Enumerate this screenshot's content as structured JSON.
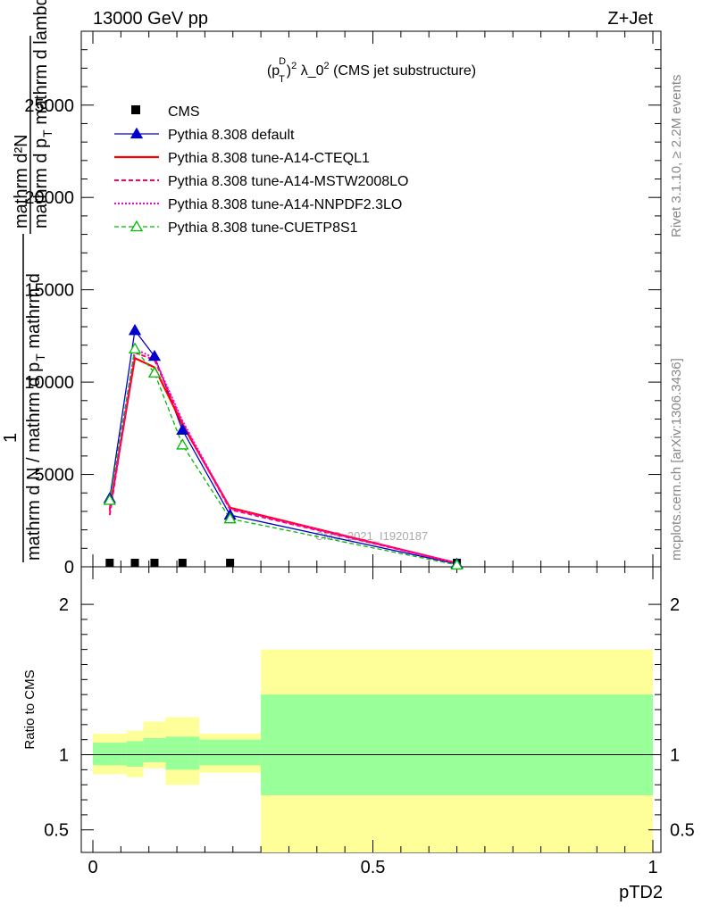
{
  "header": {
    "left": "13000 GeV pp",
    "right": "Z+Jet"
  },
  "side": {
    "rivet": "Rivet 3.1.10, ≥ 2.2M events",
    "mcplots": "mcplots.cern.ch [arXiv:1306.3436]"
  },
  "colors": {
    "cms": "#000000",
    "default": "#0000cc",
    "cteql1": "#ff0000",
    "mstw": "#ff0066",
    "nnpdf": "#ff00cc",
    "cuetp": "#00bb00",
    "band_inner": "#99ff99",
    "band_outer": "#ffff99"
  },
  "chart_data": [
    {
      "type": "line",
      "panel": "main",
      "title_parts": {
        "p": "(p",
        "sup1": "D",
        "sub": "T",
        "close": ")",
        "sup2": "2",
        "rest": " λ_0",
        "sup3": "2",
        "tail": " (CMS jet substructure)"
      },
      "ylabel_top": "mathrm d²N",
      "ylabel_mid": "mathrm d p",
      "ylabel_mid_sub": "T",
      "ylabel_mid_tail": " mathrm d lambda",
      "ylabel_one": "1",
      "ylabel_bottom": "mathrm d N / mathrm d p",
      "ylabel_bottom_sub": "T",
      "ylabel_bottom_tail": " mathrm d",
      "watermark": "CMS_2021_I1920187",
      "xlim": [
        0,
        1
      ],
      "ylim": [
        0,
        29000
      ],
      "yticks": [
        0,
        5000,
        10000,
        15000,
        20000,
        25000
      ],
      "ytick_labels": [
        "0",
        "5000",
        "10000",
        "15000",
        "20000",
        "25000"
      ],
      "series": [
        {
          "name": "CMS",
          "key": "cms",
          "style": "square",
          "x": [
            0.03,
            0.075,
            0.11,
            0.16,
            0.245,
            0.65
          ],
          "y": [
            0,
            0,
            0,
            0,
            0,
            0
          ]
        },
        {
          "name": "Pythia 8.308 default",
          "key": "default",
          "style": "solid-tri",
          "x": [
            0.03,
            0.075,
            0.11,
            0.16,
            0.245,
            0.65
          ],
          "y": [
            3700,
            12800,
            11400,
            7400,
            2800,
            150
          ]
        },
        {
          "name": "Pythia 8.308 tune-A14-CTEQL1",
          "key": "cteql1",
          "style": "solid",
          "x": [
            0.03,
            0.075,
            0.11,
            0.16,
            0.245,
            0.65
          ],
          "y": [
            3100,
            11300,
            10800,
            7700,
            3200,
            200
          ]
        },
        {
          "name": "Pythia 8.308 tune-A14-MSTW2008LO",
          "key": "mstw",
          "style": "dashed",
          "x": [
            0.03,
            0.075,
            0.11,
            0.16,
            0.245,
            0.65
          ],
          "y": [
            2800,
            11600,
            11200,
            7800,
            3100,
            200
          ]
        },
        {
          "name": "Pythia 8.308 tune-A14-NNPDF2.3LO",
          "key": "nnpdf",
          "style": "dotted",
          "x": [
            0.03,
            0.075,
            0.11,
            0.16,
            0.245,
            0.65
          ],
          "y": [
            3000,
            11800,
            11300,
            7900,
            3150,
            200
          ]
        },
        {
          "name": "Pythia 8.308 tune-CUETP8S1",
          "key": "cuetp",
          "style": "dashed-tri",
          "x": [
            0.03,
            0.075,
            0.11,
            0.16,
            0.245,
            0.65
          ],
          "y": [
            3600,
            11800,
            10500,
            6600,
            2600,
            100
          ]
        }
      ]
    },
    {
      "type": "area",
      "panel": "ratio",
      "ylabel": "Ratio to CMS",
      "xlabel": "pTD2",
      "xlim": [
        0,
        1
      ],
      "ylim": [
        0.35,
        2.25
      ],
      "yticks": [
        0.5,
        1,
        2
      ],
      "ytick_labels": [
        "0.5",
        "1",
        "2"
      ],
      "xticks": [
        0,
        0.5,
        1
      ],
      "xtick_labels": [
        "0",
        "0.5",
        "1"
      ],
      "bins": [
        {
          "x0": 0.0,
          "x1": 0.06,
          "inner": [
            0.93,
            1.08
          ],
          "outer": [
            0.87,
            1.14
          ]
        },
        {
          "x0": 0.06,
          "x1": 0.09,
          "inner": [
            0.92,
            1.09
          ],
          "outer": [
            0.85,
            1.16
          ]
        },
        {
          "x0": 0.09,
          "x1": 0.13,
          "inner": [
            0.95,
            1.11
          ],
          "outer": [
            0.91,
            1.22
          ]
        },
        {
          "x0": 0.13,
          "x1": 0.19,
          "inner": [
            0.9,
            1.12
          ],
          "outer": [
            0.8,
            1.25
          ]
        },
        {
          "x0": 0.19,
          "x1": 0.3,
          "inner": [
            0.93,
            1.1
          ],
          "outer": [
            0.88,
            1.14
          ]
        },
        {
          "x0": 0.3,
          "x1": 1.0,
          "inner": [
            0.73,
            1.4
          ],
          "outer": [
            0.35,
            1.7
          ]
        }
      ]
    }
  ]
}
